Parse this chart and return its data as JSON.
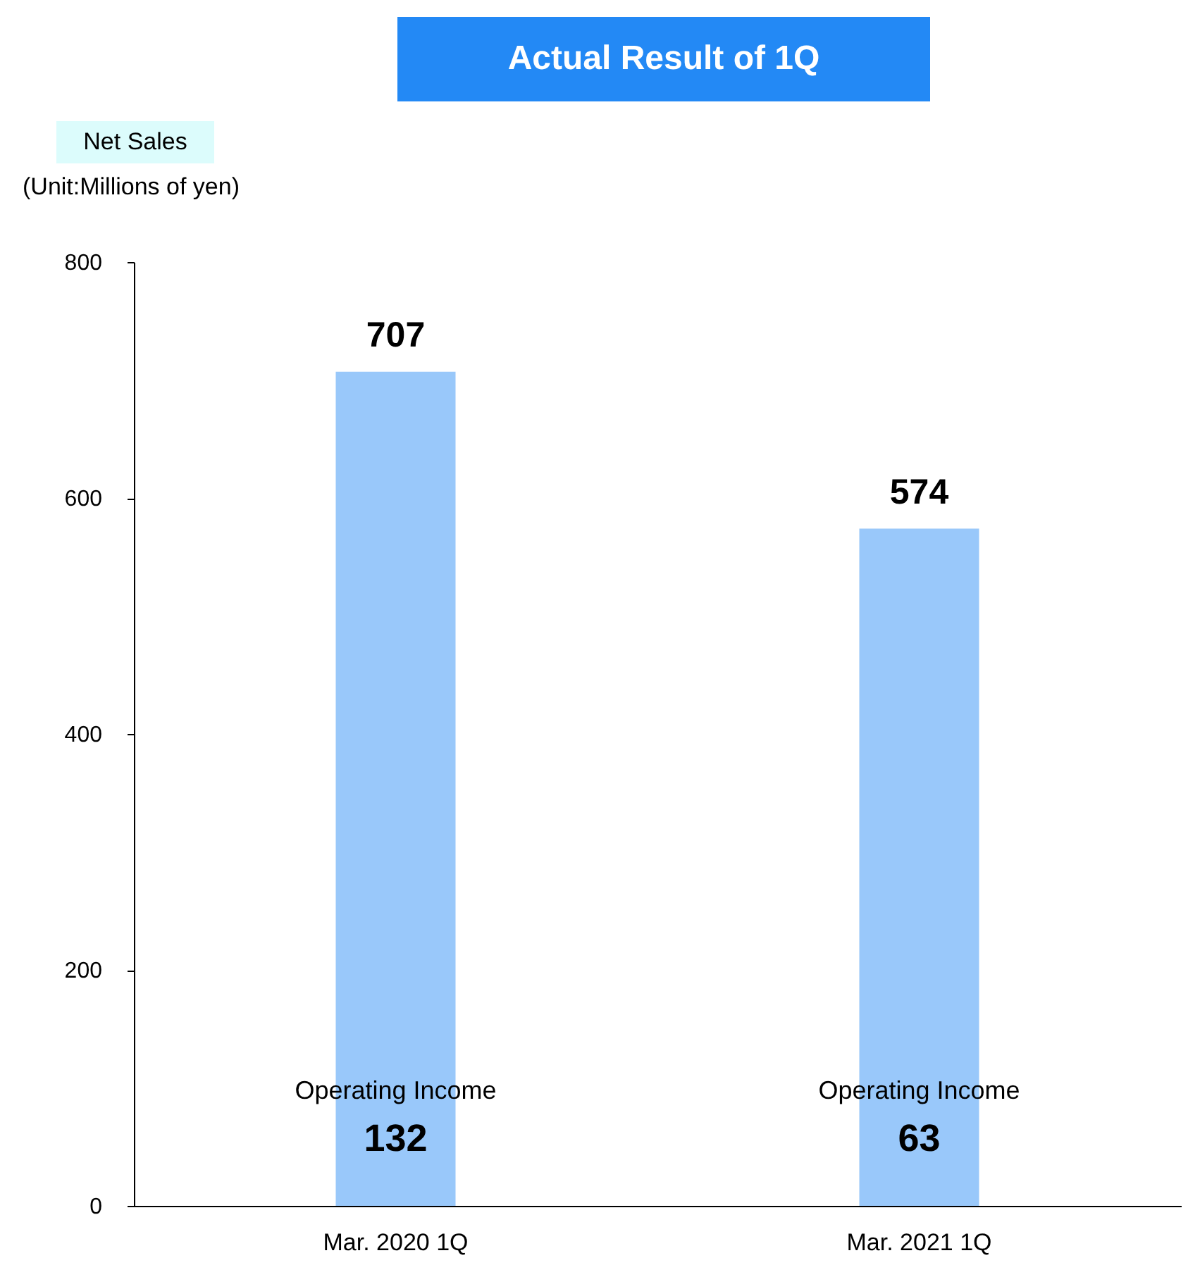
{
  "chart_data": {
    "type": "bar",
    "title": "Actual Result of 1Q",
    "ylabel": "Net Sales",
    "subtitle": "(Unit:Millions of yen)",
    "categories": [
      "Mar. 2020 1Q",
      "Mar. 2021 1Q"
    ],
    "values": [
      707,
      574
    ],
    "color": "#99c8fa",
    "ylim": [
      0,
      800
    ],
    "yticks": [
      0,
      200,
      400,
      600,
      800
    ],
    "grid": false,
    "data_labels": true,
    "annotations": [
      "Operating Income",
      "132",
      "Operating Income",
      "63"
    ]
  }
}
